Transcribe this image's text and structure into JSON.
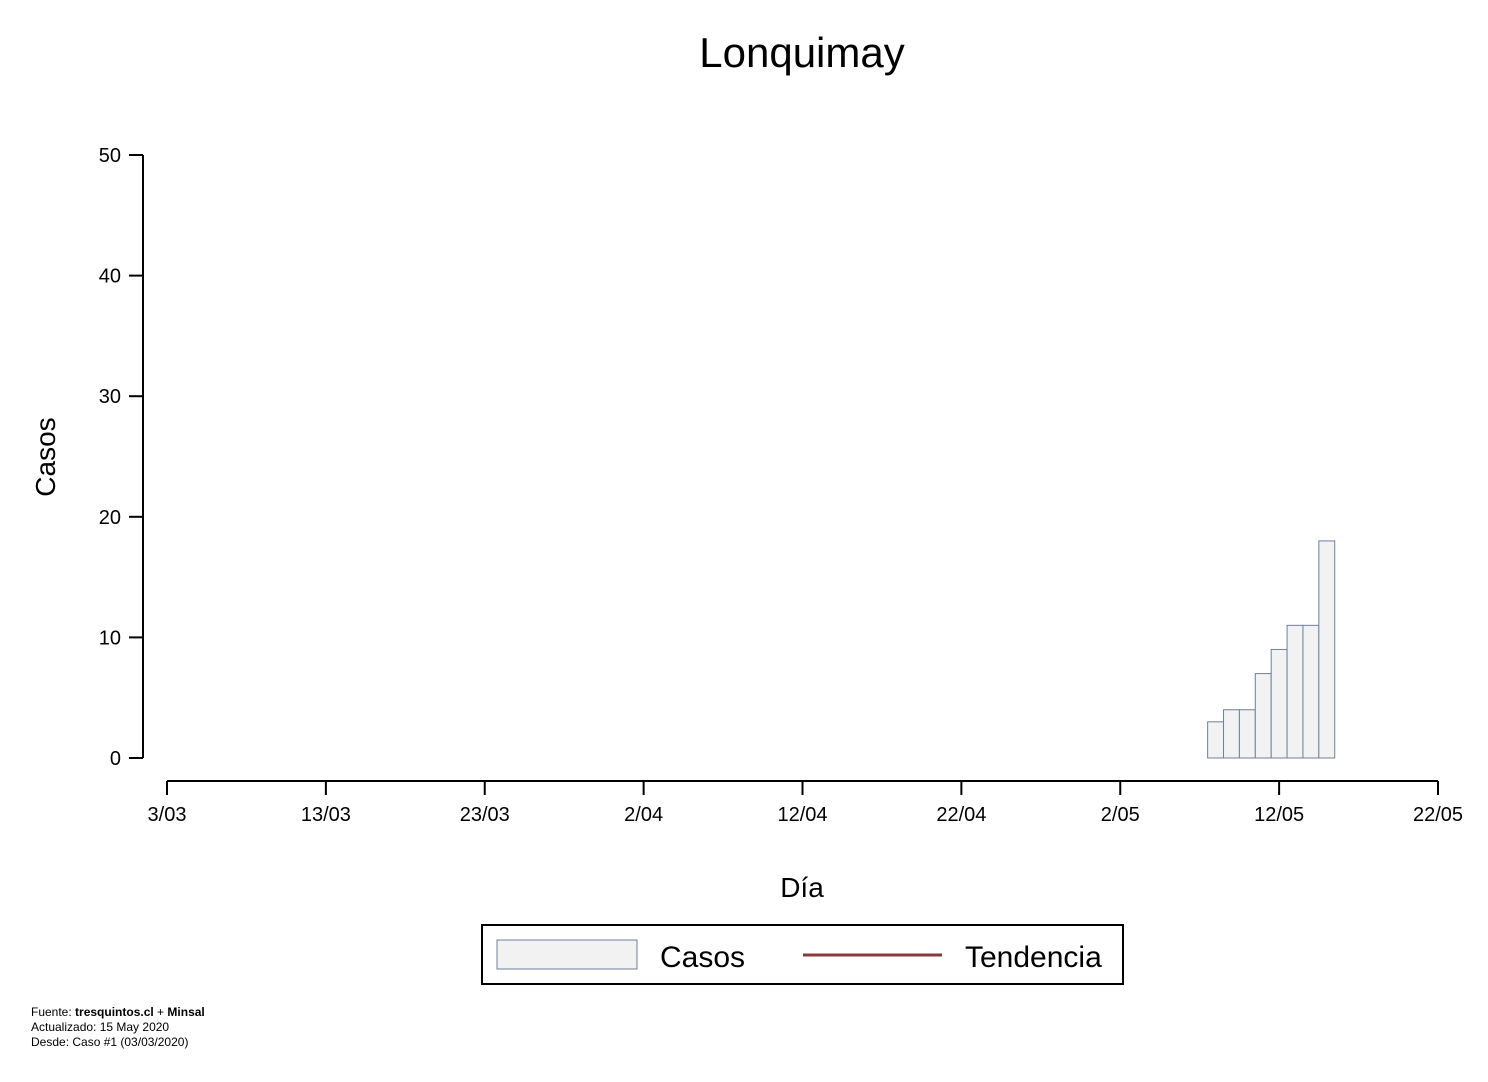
{
  "chart_data": {
    "type": "bar",
    "title": "Lonquimay",
    "xlabel": "Día",
    "ylabel": "Casos",
    "x_ticks": [
      "3/03",
      "13/03",
      "23/03",
      "2/04",
      "12/04",
      "22/04",
      "2/05",
      "12/05",
      "22/05"
    ],
    "y_ticks": [
      "0",
      "10",
      "20",
      "30",
      "40",
      "50"
    ],
    "ylim": [
      0,
      50
    ],
    "xlim": [
      "2020-03-03",
      "2020-05-22"
    ],
    "series": [
      {
        "name": "Casos",
        "dates": [
          "2020-05-08",
          "2020-05-09",
          "2020-05-10",
          "2020-05-11",
          "2020-05-12",
          "2020-05-13",
          "2020-05-14",
          "2020-05-15"
        ],
        "values": [
          3,
          4,
          4,
          7,
          9,
          11,
          11,
          18
        ]
      }
    ],
    "legend": {
      "position": "bottom",
      "entries": [
        {
          "label": "Casos",
          "kind": "bar",
          "fill": "#f2f2f2",
          "stroke": "#6f7fa0"
        },
        {
          "label": "Tendencia",
          "kind": "line",
          "stroke": "#8b3a3a"
        }
      ]
    },
    "colors": {
      "bar_fill": "#f2f2f2",
      "bar_stroke": "#6f7fa0",
      "trend": "#8b3a3a"
    }
  },
  "footer": {
    "source_prefix": "Fuente: ",
    "source_1": "tresquintos.cl",
    "source_sep": " + ",
    "source_2": "Minsal",
    "updated": "Actualizado: 15 May 2020",
    "since": "Desde: Caso #1  (03/03/2020)"
  }
}
